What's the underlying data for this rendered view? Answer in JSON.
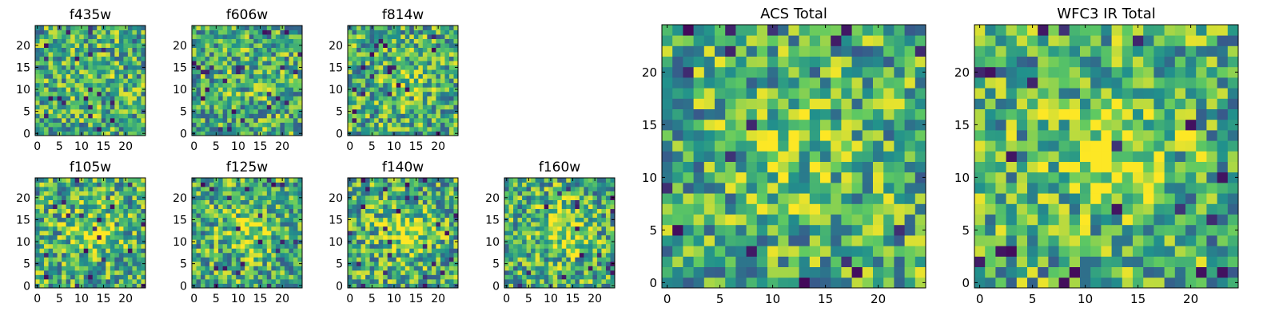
{
  "palette": [
    "#440154",
    "#3b528b",
    "#21918c",
    "#5ec962",
    "#fde725"
  ],
  "chart_data": [
    {
      "type": "heatmap",
      "title": "f435w",
      "grid": [
        25,
        25
      ],
      "xlim": [
        0,
        24
      ],
      "ylim": [
        0,
        24
      ],
      "xticks": [
        "0",
        "5",
        "10",
        "15",
        "20"
      ],
      "yticks": [
        "0",
        "5",
        "10",
        "15",
        "20"
      ],
      "seed": 11,
      "peak": 0.05
    },
    {
      "type": "heatmap",
      "title": "f606w",
      "grid": [
        25,
        25
      ],
      "xlim": [
        0,
        24
      ],
      "ylim": [
        0,
        24
      ],
      "xticks": [
        "0",
        "5",
        "10",
        "15",
        "20"
      ],
      "yticks": [
        "0",
        "5",
        "10",
        "15",
        "20"
      ],
      "seed": 23,
      "peak": 0.05
    },
    {
      "type": "heatmap",
      "title": "f814w",
      "grid": [
        25,
        25
      ],
      "xlim": [
        0,
        24
      ],
      "ylim": [
        0,
        24
      ],
      "xticks": [
        "0",
        "5",
        "10",
        "15",
        "20"
      ],
      "yticks": [
        "0",
        "5",
        "10",
        "15",
        "20"
      ],
      "seed": 37,
      "peak": 0.12
    },
    {
      "type": "heatmap",
      "title": "f105w",
      "grid": [
        25,
        25
      ],
      "xlim": [
        0,
        24
      ],
      "ylim": [
        0,
        24
      ],
      "xticks": [
        "0",
        "5",
        "10",
        "15",
        "20"
      ],
      "yticks": [
        "0",
        "5",
        "10",
        "15",
        "20"
      ],
      "seed": 41,
      "peak": 0.22
    },
    {
      "type": "heatmap",
      "title": "f125w",
      "grid": [
        25,
        25
      ],
      "xlim": [
        0,
        24
      ],
      "ylim": [
        0,
        24
      ],
      "xticks": [
        "0",
        "5",
        "10",
        "15",
        "20"
      ],
      "yticks": [
        "0",
        "5",
        "10",
        "15",
        "20"
      ],
      "seed": 53,
      "peak": 0.25
    },
    {
      "type": "heatmap",
      "title": "f140w",
      "grid": [
        25,
        25
      ],
      "xlim": [
        0,
        24
      ],
      "ylim": [
        0,
        24
      ],
      "xticks": [
        "0",
        "5",
        "10",
        "15",
        "20"
      ],
      "yticks": [
        "0",
        "5",
        "10",
        "15",
        "20"
      ],
      "seed": 67,
      "peak": 0.28
    },
    {
      "type": "heatmap",
      "title": "f160w",
      "grid": [
        25,
        25
      ],
      "xlim": [
        0,
        24
      ],
      "ylim": [
        0,
        24
      ],
      "xticks": [
        "0",
        "5",
        "10",
        "15",
        "20"
      ],
      "yticks": [
        "0",
        "5",
        "10",
        "15",
        "20"
      ],
      "seed": 79,
      "peak": 0.28
    },
    {
      "type": "heatmap",
      "title": "ACS Total",
      "grid": [
        25,
        25
      ],
      "xlim": [
        0,
        24
      ],
      "ylim": [
        0,
        24
      ],
      "xticks": [
        "0",
        "5",
        "10",
        "15",
        "20"
      ],
      "yticks": [
        "0",
        "5",
        "10",
        "15",
        "20"
      ],
      "seed": 97,
      "peak": 0.15
    },
    {
      "type": "heatmap",
      "title": "WFC3 IR Total",
      "grid": [
        25,
        25
      ],
      "xlim": [
        0,
        24
      ],
      "ylim": [
        0,
        24
      ],
      "xticks": [
        "0",
        "5",
        "10",
        "15",
        "20"
      ],
      "yticks": [
        "0",
        "5",
        "10",
        "15",
        "20"
      ],
      "seed": 113,
      "peak": 0.35
    }
  ]
}
